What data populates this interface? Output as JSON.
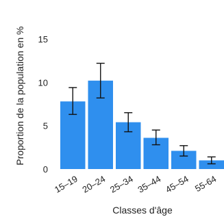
{
  "chart_data": {
    "type": "bar",
    "categories": [
      "15–19",
      "20–24",
      "25–34",
      "35–44",
      "45–54",
      "55-64"
    ],
    "values": [
      7.8,
      10.2,
      5.4,
      3.6,
      2.1,
      1.0
    ],
    "error_low": [
      6.3,
      8.2,
      4.3,
      2.8,
      1.5,
      0.6
    ],
    "error_high": [
      9.4,
      12.2,
      6.5,
      4.5,
      2.7,
      1.4
    ],
    "xlabel": "Classes d'âge",
    "ylabel": "Proportion de la population en %",
    "ylim": [
      0,
      15
    ],
    "yticks": [
      0,
      5,
      10,
      15
    ],
    "grid": false,
    "bar_color": "#2f8fee",
    "error_color": "#111111"
  }
}
